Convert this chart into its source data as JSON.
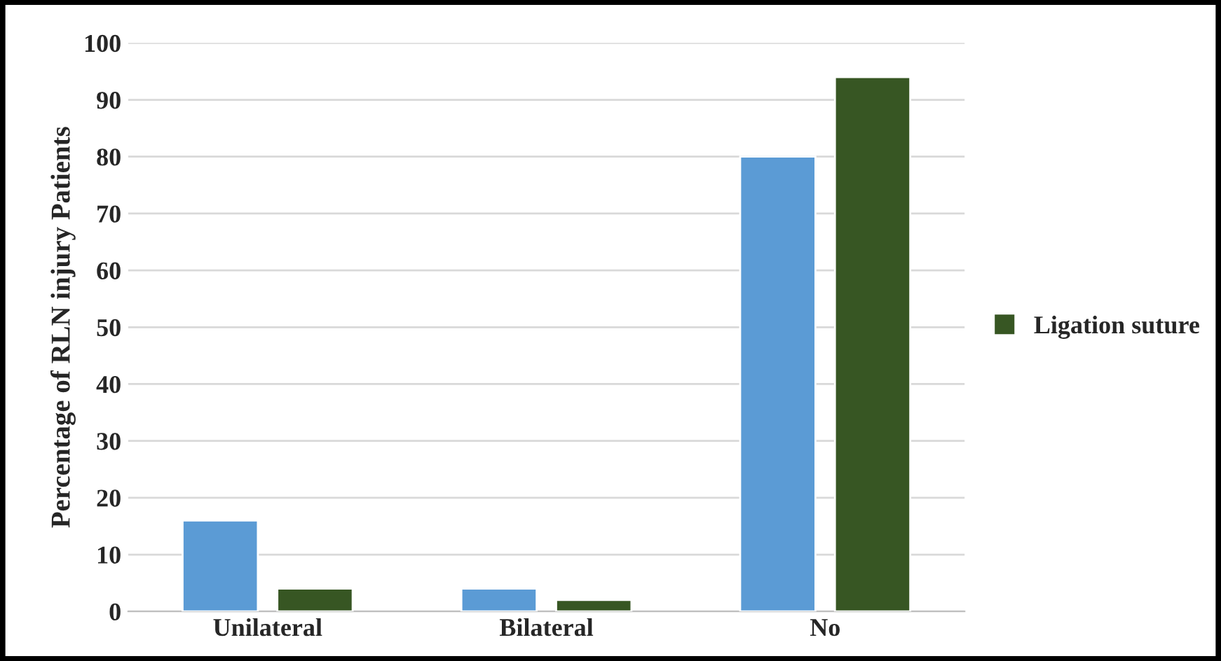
{
  "chart_data": {
    "type": "bar",
    "ylabel": "Percentage of RLN injury Patients",
    "categories": [
      "Unilateral",
      "Bilateral",
      "No"
    ],
    "series": [
      {
        "color": "#5b9bd5",
        "values": [
          16,
          4,
          80
        ]
      },
      {
        "name": "Ligation suture",
        "color": "#375623",
        "values": [
          4,
          2,
          94
        ]
      }
    ],
    "ylim": [
      0,
      100
    ],
    "yticks": [
      0,
      10,
      20,
      30,
      40,
      50,
      60,
      70,
      80,
      90,
      100
    ],
    "grid": "y",
    "legend": "right"
  }
}
